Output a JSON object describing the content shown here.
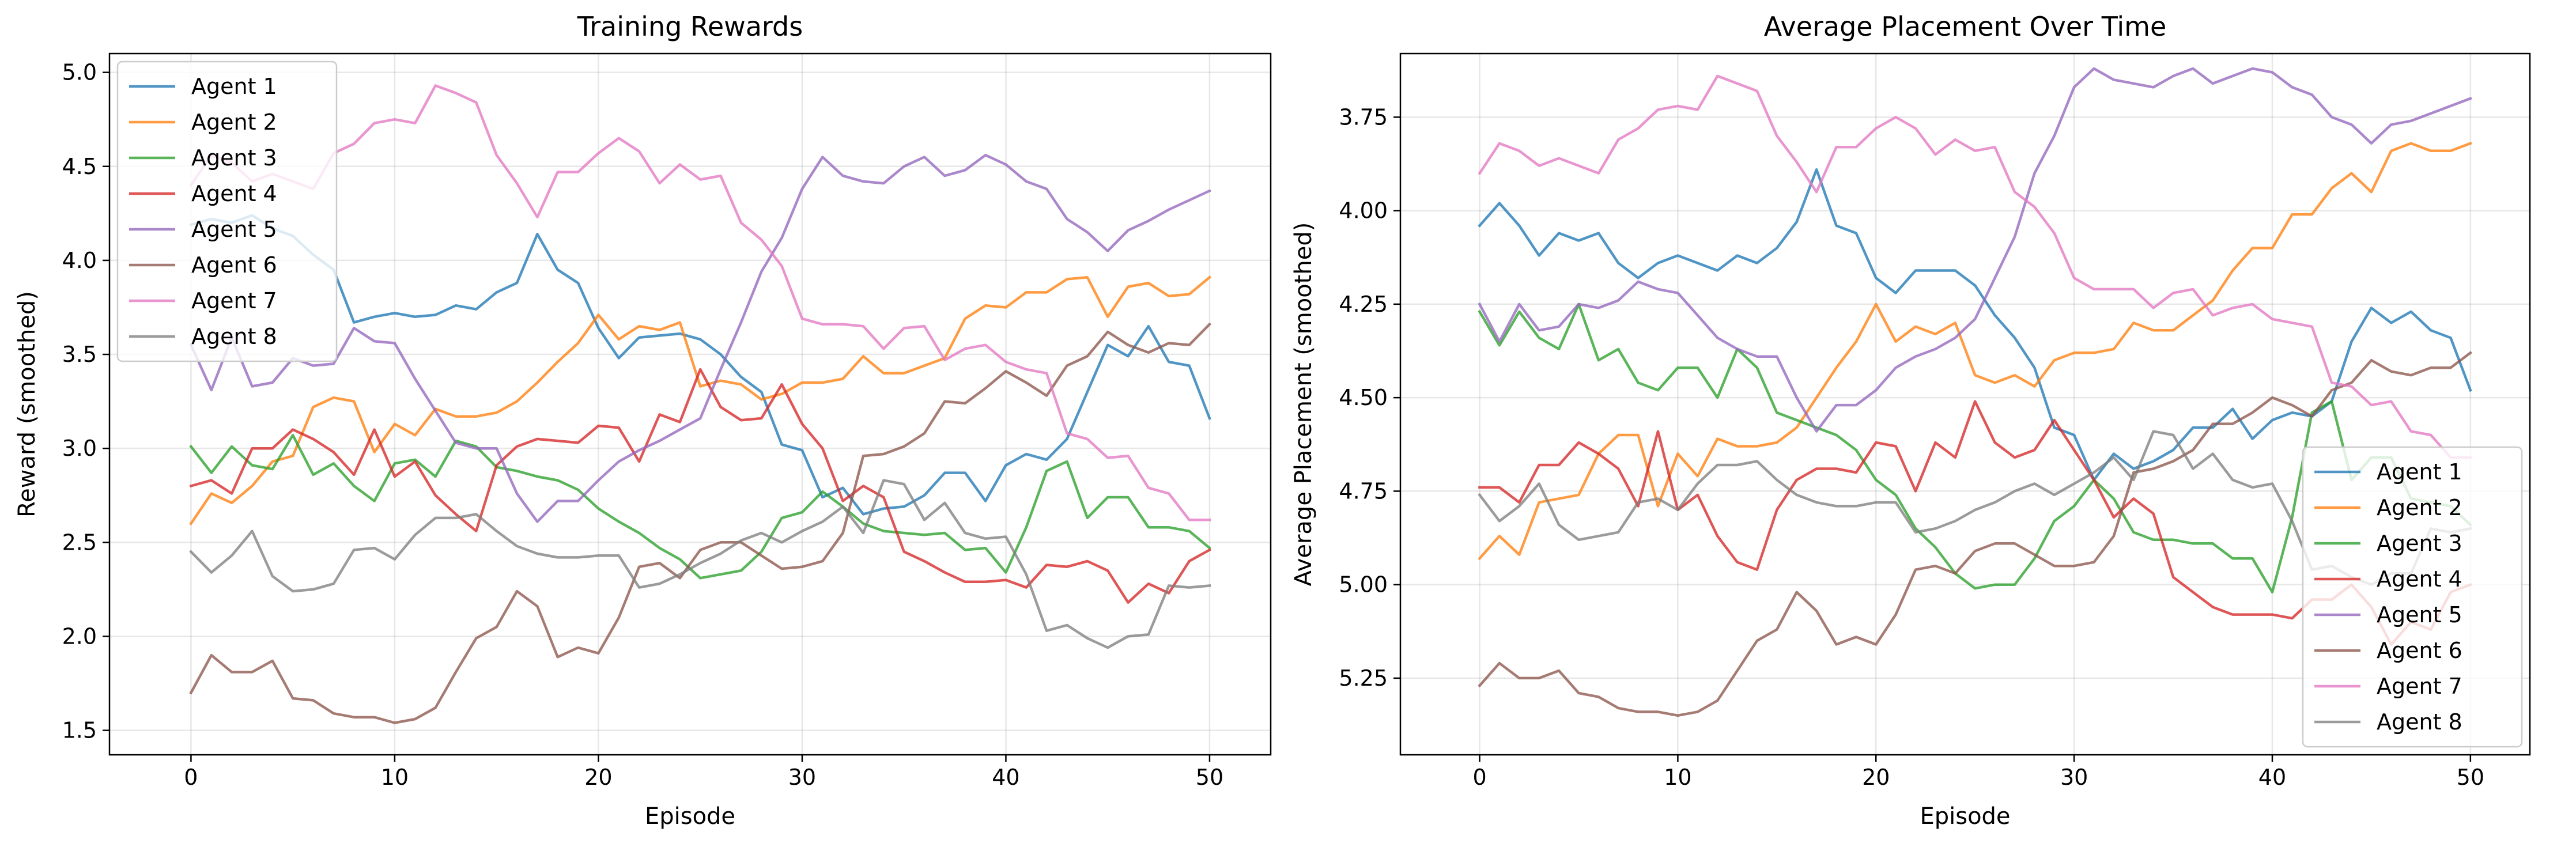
{
  "figure": {
    "background": "#ffffff"
  },
  "chart_data": [
    {
      "type": "line",
      "title": "Training Rewards",
      "xlabel": "Episode",
      "ylabel": "Reward (smoothed)",
      "xlim": [
        -4,
        53
      ],
      "ylim": [
        1.37,
        5.1
      ],
      "xticks": [
        0,
        10,
        20,
        30,
        40,
        50
      ],
      "yticks": [
        1.5,
        2.0,
        2.5,
        3.0,
        3.5,
        4.0,
        4.5,
        5.0
      ],
      "ytick_labels": [
        "1.5",
        "2.0",
        "2.5",
        "3.0",
        "3.5",
        "4.0",
        "4.5",
        "5.0"
      ],
      "grid": true,
      "legend_position": "upper-left",
      "x": [
        0,
        1,
        2,
        3,
        4,
        5,
        6,
        7,
        8,
        9,
        10,
        11,
        12,
        13,
        14,
        15,
        16,
        17,
        18,
        19,
        20,
        21,
        22,
        23,
        24,
        25,
        26,
        27,
        28,
        29,
        30,
        31,
        32,
        33,
        34,
        35,
        36,
        37,
        38,
        39,
        40,
        41,
        42,
        43,
        44,
        45,
        46,
        47,
        48,
        49,
        50
      ],
      "series": [
        {
          "name": "Agent 1",
          "color": "#1f77b4",
          "values": [
            4.19,
            4.22,
            4.2,
            4.24,
            4.17,
            4.13,
            4.03,
            3.95,
            3.67,
            3.7,
            3.72,
            3.7,
            3.71,
            3.76,
            3.74,
            3.83,
            3.88,
            4.14,
            3.95,
            3.88,
            3.64,
            3.48,
            3.59,
            3.6,
            3.61,
            3.58,
            3.5,
            3.38,
            3.3,
            3.02,
            2.99,
            2.74,
            2.79,
            2.65,
            2.68,
            2.69,
            2.75,
            2.87,
            2.87,
            2.72,
            2.91,
            2.97,
            2.94,
            3.05,
            3.3,
            3.55,
            3.49,
            3.65,
            3.46,
            3.44,
            3.16
          ]
        },
        {
          "name": "Agent 2",
          "color": "#ff7f0e",
          "values": [
            2.6,
            2.76,
            2.71,
            2.8,
            2.93,
            2.96,
            3.22,
            3.27,
            3.25,
            2.98,
            3.13,
            3.07,
            3.21,
            3.17,
            3.17,
            3.19,
            3.25,
            3.35,
            3.46,
            3.56,
            3.71,
            3.58,
            3.65,
            3.63,
            3.67,
            3.33,
            3.36,
            3.34,
            3.26,
            3.29,
            3.35,
            3.35,
            3.37,
            3.49,
            3.4,
            3.4,
            3.44,
            3.48,
            3.69,
            3.76,
            3.75,
            3.83,
            3.83,
            3.9,
            3.91,
            3.7,
            3.86,
            3.88,
            3.81,
            3.82,
            3.91
          ]
        },
        {
          "name": "Agent 3",
          "color": "#2ca02c",
          "values": [
            3.01,
            2.87,
            3.01,
            2.91,
            2.89,
            3.07,
            2.86,
            2.92,
            2.8,
            2.72,
            2.92,
            2.94,
            2.85,
            3.04,
            3.01,
            2.9,
            2.88,
            2.85,
            2.83,
            2.78,
            2.68,
            2.61,
            2.55,
            2.47,
            2.41,
            2.31,
            2.33,
            2.35,
            2.45,
            2.63,
            2.66,
            2.77,
            2.69,
            2.6,
            2.56,
            2.55,
            2.54,
            2.55,
            2.46,
            2.47,
            2.34,
            2.58,
            2.88,
            2.93,
            2.63,
            2.74,
            2.74,
            2.58,
            2.58,
            2.56,
            2.47
          ]
        },
        {
          "name": "Agent 4",
          "color": "#d62728",
          "values": [
            2.8,
            2.83,
            2.76,
            3.0,
            3.0,
            3.1,
            3.05,
            2.98,
            2.86,
            3.1,
            2.85,
            2.93,
            2.75,
            2.65,
            2.56,
            2.91,
            3.01,
            3.05,
            3.04,
            3.03,
            3.12,
            3.11,
            2.93,
            3.18,
            3.14,
            3.42,
            3.22,
            3.15,
            3.16,
            3.34,
            3.13,
            3.0,
            2.72,
            2.8,
            2.74,
            2.45,
            2.4,
            2.34,
            2.29,
            2.29,
            2.3,
            2.26,
            2.38,
            2.37,
            2.4,
            2.35,
            2.18,
            2.28,
            2.23,
            2.4,
            2.46
          ]
        },
        {
          "name": "Agent 5",
          "color": "#9467bd",
          "values": [
            3.55,
            3.31,
            3.59,
            3.33,
            3.35,
            3.48,
            3.44,
            3.45,
            3.64,
            3.57,
            3.56,
            3.37,
            3.2,
            3.03,
            3.0,
            3.0,
            2.76,
            2.61,
            2.72,
            2.72,
            2.83,
            2.93,
            2.99,
            3.04,
            3.1,
            3.16,
            3.42,
            3.67,
            3.94,
            4.12,
            4.38,
            4.55,
            4.45,
            4.42,
            4.41,
            4.5,
            4.55,
            4.45,
            4.48,
            4.56,
            4.51,
            4.42,
            4.38,
            4.22,
            4.15,
            4.05,
            4.16,
            4.21,
            4.27,
            4.32,
            4.37
          ]
        },
        {
          "name": "Agent 6",
          "color": "#8c564b",
          "values": [
            1.7,
            1.9,
            1.81,
            1.81,
            1.87,
            1.67,
            1.66,
            1.59,
            1.57,
            1.57,
            1.54,
            1.56,
            1.62,
            1.81,
            1.99,
            2.05,
            2.24,
            2.16,
            1.89,
            1.94,
            1.91,
            2.1,
            2.37,
            2.39,
            2.31,
            2.46,
            2.5,
            2.5,
            2.43,
            2.36,
            2.37,
            2.4,
            2.55,
            2.96,
            2.97,
            3.01,
            3.08,
            3.25,
            3.24,
            3.32,
            3.41,
            3.35,
            3.28,
            3.44,
            3.49,
            3.62,
            3.55,
            3.51,
            3.56,
            3.55,
            3.66
          ]
        },
        {
          "name": "Agent 7",
          "color": "#e377c2",
          "values": [
            4.4,
            4.56,
            4.52,
            4.42,
            4.46,
            4.42,
            4.38,
            4.57,
            4.62,
            4.73,
            4.75,
            4.73,
            4.93,
            4.89,
            4.84,
            4.56,
            4.41,
            4.23,
            4.47,
            4.47,
            4.57,
            4.65,
            4.58,
            4.41,
            4.51,
            4.43,
            4.45,
            4.2,
            4.11,
            3.97,
            3.69,
            3.66,
            3.66,
            3.65,
            3.53,
            3.64,
            3.65,
            3.47,
            3.53,
            3.55,
            3.46,
            3.42,
            3.4,
            3.08,
            3.05,
            2.95,
            2.96,
            2.79,
            2.76,
            2.62,
            2.62
          ]
        },
        {
          "name": "Agent 8",
          "color": "#7f7f7f",
          "values": [
            2.45,
            2.34,
            2.43,
            2.56,
            2.32,
            2.24,
            2.25,
            2.28,
            2.46,
            2.47,
            2.41,
            2.54,
            2.63,
            2.63,
            2.65,
            2.56,
            2.48,
            2.44,
            2.42,
            2.42,
            2.43,
            2.43,
            2.26,
            2.28,
            2.33,
            2.39,
            2.44,
            2.51,
            2.55,
            2.5,
            2.56,
            2.61,
            2.69,
            2.55,
            2.83,
            2.81,
            2.62,
            2.71,
            2.55,
            2.52,
            2.53,
            2.33,
            2.03,
            2.06,
            1.99,
            1.94,
            2.0,
            2.01,
            2.27,
            2.26,
            2.27
          ]
        }
      ]
    },
    {
      "type": "line",
      "title": "Average Placement Over Time",
      "xlabel": "Episode",
      "ylabel": "Average Placement (smoothed)",
      "xlim": [
        -4,
        53
      ],
      "ylim": [
        5.455,
        3.58
      ],
      "y_inverted": true,
      "xticks": [
        0,
        10,
        20,
        30,
        40,
        50
      ],
      "yticks": [
        3.75,
        4.0,
        4.25,
        4.5,
        4.75,
        5.0,
        5.25
      ],
      "ytick_labels": [
        "3.75",
        "4.00",
        "4.25",
        "4.50",
        "4.75",
        "5.00",
        "5.25"
      ],
      "grid": true,
      "legend_position": "lower-right",
      "x": [
        0,
        1,
        2,
        3,
        4,
        5,
        6,
        7,
        8,
        9,
        10,
        11,
        12,
        13,
        14,
        15,
        16,
        17,
        18,
        19,
        20,
        21,
        22,
        23,
        24,
        25,
        26,
        27,
        28,
        29,
        30,
        31,
        32,
        33,
        34,
        35,
        36,
        37,
        38,
        39,
        40,
        41,
        42,
        43,
        44,
        45,
        46,
        47,
        48,
        49,
        50
      ],
      "series": [
        {
          "name": "Agent 1",
          "color": "#1f77b4",
          "values": [
            4.04,
            3.98,
            4.04,
            4.12,
            4.06,
            4.08,
            4.06,
            4.14,
            4.18,
            4.14,
            4.12,
            4.14,
            4.16,
            4.12,
            4.14,
            4.1,
            4.03,
            3.89,
            4.04,
            4.06,
            4.18,
            4.22,
            4.16,
            4.16,
            4.16,
            4.2,
            4.28,
            4.34,
            4.42,
            4.58,
            4.6,
            4.72,
            4.65,
            4.69,
            4.67,
            4.64,
            4.58,
            4.58,
            4.53,
            4.61,
            4.56,
            4.54,
            4.55,
            4.51,
            4.35,
            4.26,
            4.3,
            4.27,
            4.32,
            4.34,
            4.48
          ]
        },
        {
          "name": "Agent 2",
          "color": "#ff7f0e",
          "values": [
            4.93,
            4.87,
            4.92,
            4.78,
            4.77,
            4.76,
            4.65,
            4.6,
            4.6,
            4.79,
            4.65,
            4.71,
            4.61,
            4.63,
            4.63,
            4.62,
            4.58,
            4.5,
            4.42,
            4.35,
            4.25,
            4.35,
            4.31,
            4.33,
            4.3,
            4.44,
            4.46,
            4.44,
            4.47,
            4.4,
            4.38,
            4.38,
            4.37,
            4.3,
            4.32,
            4.32,
            4.28,
            4.24,
            4.16,
            4.1,
            4.1,
            4.01,
            4.01,
            3.94,
            3.9,
            3.95,
            3.84,
            3.82,
            3.84,
            3.84,
            3.82
          ]
        },
        {
          "name": "Agent 3",
          "color": "#2ca02c",
          "values": [
            4.27,
            4.36,
            4.27,
            4.34,
            4.37,
            4.25,
            4.4,
            4.37,
            4.46,
            4.48,
            4.42,
            4.42,
            4.5,
            4.37,
            4.42,
            4.54,
            4.56,
            4.58,
            4.6,
            4.64,
            4.72,
            4.76,
            4.85,
            4.9,
            4.97,
            5.01,
            5.0,
            5.0,
            4.93,
            4.83,
            4.79,
            4.72,
            4.77,
            4.86,
            4.88,
            4.88,
            4.89,
            4.89,
            4.93,
            4.93,
            5.02,
            4.82,
            4.54,
            4.51,
            4.72,
            4.66,
            4.66,
            4.77,
            4.78,
            4.79,
            4.84
          ]
        },
        {
          "name": "Agent 4",
          "color": "#d62728",
          "values": [
            4.74,
            4.74,
            4.78,
            4.68,
            4.68,
            4.62,
            4.65,
            4.69,
            4.79,
            4.59,
            4.8,
            4.76,
            4.87,
            4.94,
            4.96,
            4.8,
            4.72,
            4.69,
            4.69,
            4.7,
            4.62,
            4.63,
            4.75,
            4.62,
            4.66,
            4.51,
            4.62,
            4.66,
            4.64,
            4.56,
            4.64,
            4.72,
            4.82,
            4.77,
            4.81,
            4.98,
            5.02,
            5.06,
            5.08,
            5.08,
            5.08,
            5.09,
            5.04,
            5.04,
            5.0,
            5.06,
            5.16,
            5.1,
            5.12,
            5.02,
            5.0
          ]
        },
        {
          "name": "Agent 5",
          "color": "#9467bd",
          "values": [
            4.25,
            4.35,
            4.25,
            4.32,
            4.31,
            4.25,
            4.26,
            4.24,
            4.19,
            4.21,
            4.22,
            4.28,
            4.34,
            4.37,
            4.39,
            4.39,
            4.5,
            4.59,
            4.52,
            4.52,
            4.48,
            4.42,
            4.39,
            4.37,
            4.34,
            4.29,
            4.18,
            4.07,
            3.9,
            3.8,
            3.67,
            3.62,
            3.65,
            3.66,
            3.67,
            3.64,
            3.62,
            3.66,
            3.64,
            3.62,
            3.63,
            3.67,
            3.69,
            3.75,
            3.77,
            3.82,
            3.77,
            3.76,
            3.74,
            3.72,
            3.7
          ]
        },
        {
          "name": "Agent 6",
          "color": "#8c564b",
          "values": [
            5.27,
            5.21,
            5.25,
            5.25,
            5.23,
            5.29,
            5.3,
            5.33,
            5.34,
            5.34,
            5.35,
            5.34,
            5.31,
            5.23,
            5.15,
            5.12,
            5.02,
            5.07,
            5.16,
            5.14,
            5.16,
            5.08,
            4.96,
            4.95,
            4.97,
            4.91,
            4.89,
            4.89,
            4.92,
            4.95,
            4.95,
            4.94,
            4.87,
            4.7,
            4.69,
            4.67,
            4.64,
            4.57,
            4.57,
            4.54,
            4.5,
            4.52,
            4.55,
            4.48,
            4.46,
            4.4,
            4.43,
            4.44,
            4.42,
            4.42,
            4.38
          ]
        },
        {
          "name": "Agent 7",
          "color": "#e377c2",
          "values": [
            3.9,
            3.82,
            3.84,
            3.88,
            3.86,
            3.88,
            3.9,
            3.81,
            3.78,
            3.73,
            3.72,
            3.73,
            3.64,
            3.66,
            3.68,
            3.8,
            3.87,
            3.95,
            3.83,
            3.83,
            3.78,
            3.75,
            3.78,
            3.85,
            3.81,
            3.84,
            3.83,
            3.95,
            3.99,
            4.06,
            4.18,
            4.21,
            4.21,
            4.21,
            4.26,
            4.22,
            4.21,
            4.28,
            4.26,
            4.25,
            4.29,
            4.3,
            4.31,
            4.46,
            4.47,
            4.52,
            4.51,
            4.59,
            4.6,
            4.66,
            4.66
          ]
        },
        {
          "name": "Agent 8",
          "color": "#7f7f7f",
          "values": [
            4.76,
            4.83,
            4.79,
            4.73,
            4.84,
            4.88,
            4.87,
            4.86,
            4.78,
            4.77,
            4.8,
            4.73,
            4.68,
            4.68,
            4.67,
            4.72,
            4.76,
            4.78,
            4.79,
            4.79,
            4.78,
            4.78,
            4.86,
            4.85,
            4.83,
            4.8,
            4.78,
            4.75,
            4.73,
            4.76,
            4.73,
            4.7,
            4.66,
            4.72,
            4.59,
            4.6,
            4.69,
            4.65,
            4.72,
            4.74,
            4.73,
            4.83,
            4.96,
            4.95,
            4.98,
            5.0,
            4.97,
            4.97,
            4.85,
            4.86,
            4.85
          ]
        }
      ]
    }
  ]
}
